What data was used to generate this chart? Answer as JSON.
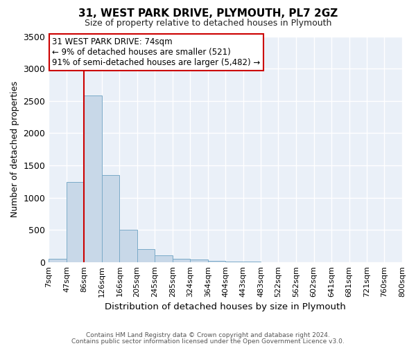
{
  "title": "31, WEST PARK DRIVE, PLYMOUTH, PL7 2GZ",
  "subtitle": "Size of property relative to detached houses in Plymouth",
  "xlabel": "Distribution of detached houses by size in Plymouth",
  "ylabel": "Number of detached properties",
  "bar_color": "#c8d8e8",
  "bar_edge_color": "#7aaac8",
  "bg_color": "#eaf0f8",
  "grid_color": "#ffffff",
  "property_line_color": "#cc0000",
  "annotation_text": "31 WEST PARK DRIVE: 74sqm\n← 9% of detached houses are smaller (521)\n91% of semi-detached houses are larger (5,482) →",
  "bin_edges": [
    7,
    47,
    86,
    126,
    166,
    205,
    245,
    285,
    324,
    364,
    404,
    443,
    483,
    522,
    562,
    602,
    641,
    681,
    721,
    760,
    800
  ],
  "bar_heights": [
    50,
    1240,
    2580,
    1350,
    500,
    200,
    110,
    50,
    40,
    15,
    10,
    5,
    2,
    1,
    1,
    0,
    0,
    0,
    0,
    0
  ],
  "ylim": [
    0,
    3500
  ],
  "yticks": [
    0,
    500,
    1000,
    1500,
    2000,
    2500,
    3000,
    3500
  ],
  "footer_line1": "Contains HM Land Registry data © Crown copyright and database right 2024.",
  "footer_line2": "Contains public sector information licensed under the Open Government Licence v3.0."
}
